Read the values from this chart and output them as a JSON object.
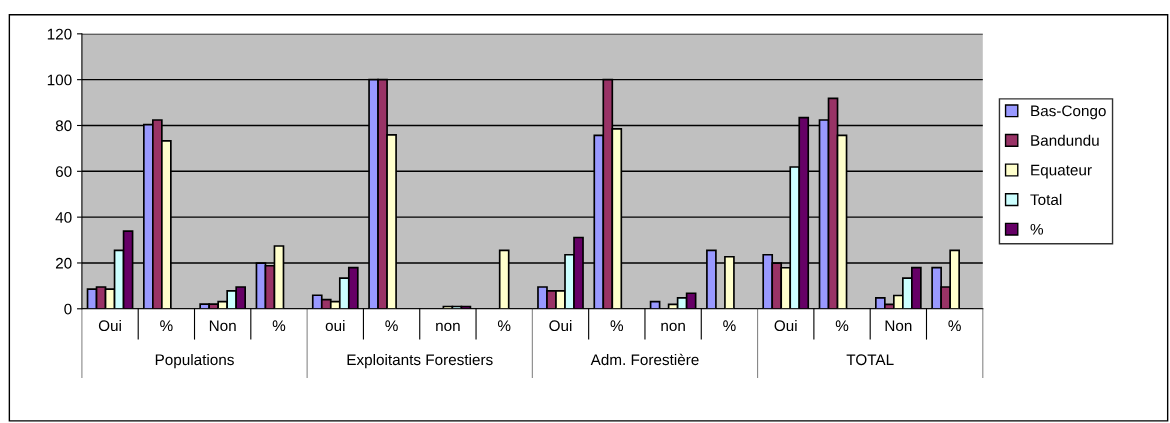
{
  "chart_data": {
    "type": "bar",
    "categories": [
      "Oui",
      "%",
      "Non",
      "%",
      "oui",
      "%",
      "non",
      "%",
      "Oui",
      "%",
      "non",
      "%",
      "Oui",
      "%",
      "Non",
      "%"
    ],
    "series": [
      {
        "name": "Bas-Congo",
        "color": "#9999ff",
        "values": [
          8.6,
          80.4,
          2,
          19.9,
          5.9,
          100,
          null,
          null,
          9.5,
          75.7,
          3.1,
          25.5,
          23.6,
          82.4,
          4.8,
          18
        ]
      },
      {
        "name": "Bandundu",
        "color": "#993366",
        "values": [
          9.5,
          82.4,
          2,
          18.8,
          4,
          100,
          null,
          null,
          7.8,
          100,
          null,
          null,
          19.9,
          91.8,
          1.9,
          9.5
        ]
      },
      {
        "name": "Equateur",
        "color": "#ffffcc",
        "values": [
          8.6,
          73.3,
          3.1,
          27.4,
          3.1,
          75.9,
          1,
          25.5,
          7.8,
          78.5,
          1.9,
          22.7,
          17.9,
          75.7,
          5.8,
          25.5
        ]
      },
      {
        "name": "Total",
        "color": "#ccffff",
        "values": [
          25.5,
          null,
          7.8,
          null,
          13.4,
          null,
          1,
          null,
          23.6,
          null,
          4.8,
          null,
          61.9,
          null,
          13.4,
          null
        ]
      },
      {
        "name": "%",
        "color": "#660066",
        "values": [
          33.9,
          null,
          9.5,
          null,
          18,
          null,
          1,
          null,
          31.1,
          null,
          6.8,
          null,
          83.4,
          null,
          18,
          null
        ]
      }
    ],
    "annotations": [
      "Populations",
      "Exploitants Forestiers",
      "Adm. Forestière",
      "TOTAL"
    ],
    "ylim": [
      0,
      120
    ],
    "yticks": [
      0,
      20,
      40,
      60,
      80,
      100,
      120
    ],
    "grid": "y",
    "legend": "right"
  }
}
